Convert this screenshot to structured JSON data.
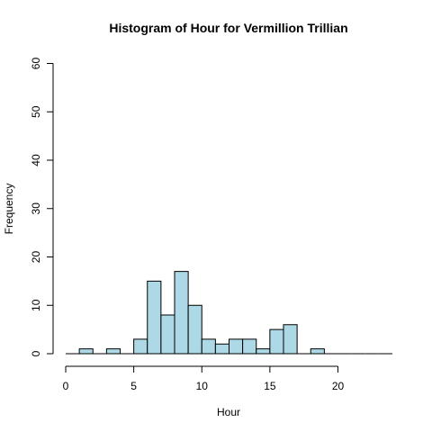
{
  "chart_data": {
    "type": "bar",
    "title": "Histogram of Hour for Vermillion Trillian",
    "xlabel": "Hour",
    "ylabel": "Frequency",
    "bar_color": "#add8e6",
    "x_ticks": [
      0,
      5,
      10,
      15,
      20
    ],
    "y_ticks": [
      0,
      10,
      20,
      30,
      40,
      50,
      60
    ],
    "xlim": [
      0,
      24
    ],
    "ylim": [
      0,
      60
    ],
    "bins": [
      {
        "start": 0,
        "end": 1,
        "count": 0
      },
      {
        "start": 1,
        "end": 2,
        "count": 1
      },
      {
        "start": 2,
        "end": 3,
        "count": 0
      },
      {
        "start": 3,
        "end": 4,
        "count": 1
      },
      {
        "start": 4,
        "end": 5,
        "count": 0
      },
      {
        "start": 5,
        "end": 6,
        "count": 3
      },
      {
        "start": 6,
        "end": 7,
        "count": 15
      },
      {
        "start": 7,
        "end": 8,
        "count": 8
      },
      {
        "start": 8,
        "end": 9,
        "count": 17
      },
      {
        "start": 9,
        "end": 10,
        "count": 10
      },
      {
        "start": 10,
        "end": 11,
        "count": 3
      },
      {
        "start": 11,
        "end": 12,
        "count": 2
      },
      {
        "start": 12,
        "end": 13,
        "count": 3
      },
      {
        "start": 13,
        "end": 14,
        "count": 3
      },
      {
        "start": 14,
        "end": 15,
        "count": 1
      },
      {
        "start": 15,
        "end": 16,
        "count": 5
      },
      {
        "start": 16,
        "end": 17,
        "count": 6
      },
      {
        "start": 17,
        "end": 18,
        "count": 0
      },
      {
        "start": 18,
        "end": 19,
        "count": 1
      },
      {
        "start": 19,
        "end": 20,
        "count": 0
      },
      {
        "start": 20,
        "end": 21,
        "count": 0
      },
      {
        "start": 21,
        "end": 22,
        "count": 0
      },
      {
        "start": 22,
        "end": 23,
        "count": 0
      },
      {
        "start": 23,
        "end": 24,
        "count": 0
      }
    ]
  }
}
